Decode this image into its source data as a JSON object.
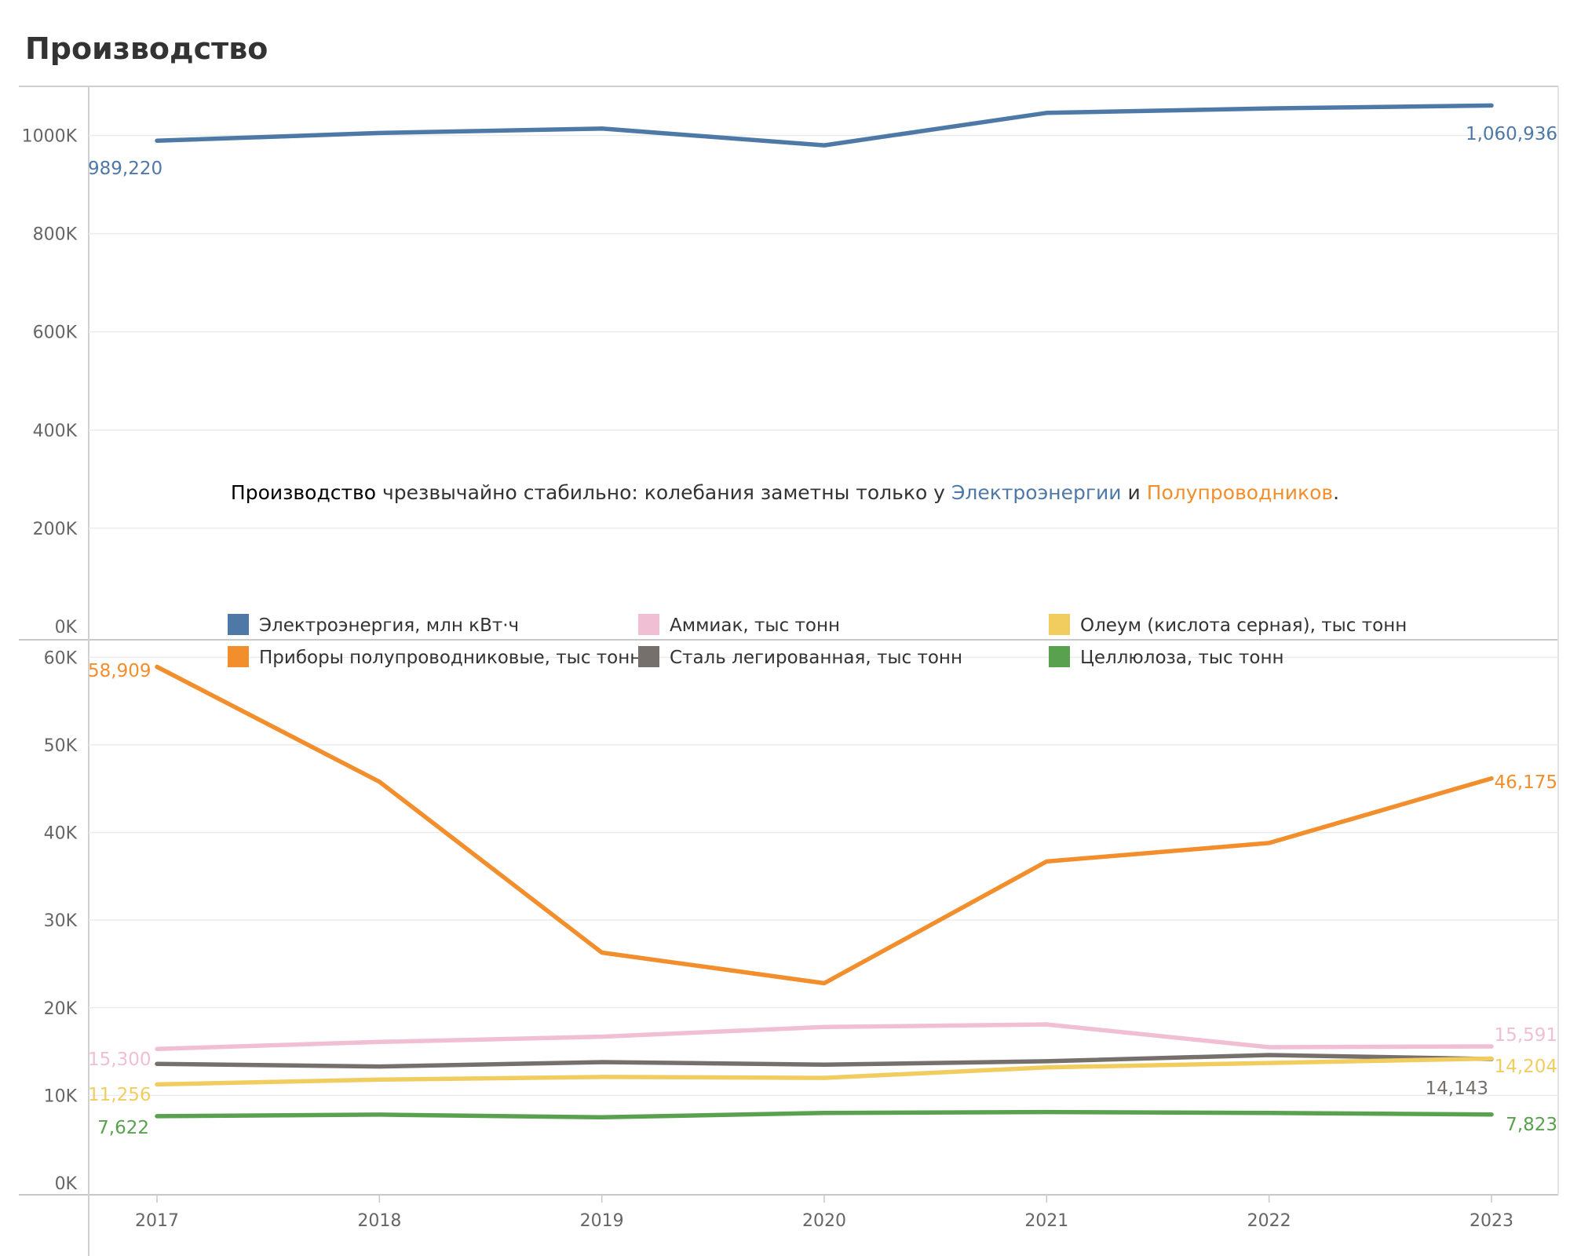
{
  "title": "Производство",
  "annotation": {
    "lead": "Производство",
    "middle": " чрезвычайно стабильно: колебания заметны только у ",
    "hl1": "Электроэнергии",
    "conj": " и ",
    "hl2": "Полупроводников",
    "end": "."
  },
  "chart_data": [
    {
      "type": "line",
      "x": [
        "2017",
        "2018",
        "2019",
        "2020",
        "2021",
        "2022",
        "2023"
      ],
      "ylim": [
        0,
        1100000
      ],
      "yticks": [
        0,
        200000,
        400000,
        600000,
        800000,
        1000000
      ],
      "ytick_labels": [
        "0K",
        "200K",
        "400K",
        "600K",
        "800K",
        "1000K"
      ],
      "series": [
        {
          "name": "Электроэнергия, млн кВт·ч",
          "color": "#4e79a7",
          "values": [
            989220,
            1005000,
            1014000,
            980000,
            1046000,
            1055000,
            1060936
          ],
          "start_label": "989,220",
          "end_label": "1,060,936"
        }
      ]
    },
    {
      "type": "line",
      "x": [
        "2017",
        "2018",
        "2019",
        "2020",
        "2021",
        "2022",
        "2023"
      ],
      "ylim": [
        0,
        62000
      ],
      "yticks": [
        0,
        10000,
        20000,
        30000,
        40000,
        50000,
        60000
      ],
      "ytick_labels": [
        "0K",
        "10K",
        "20K",
        "30K",
        "40K",
        "50K",
        "60K"
      ],
      "series": [
        {
          "name": "Приборы полупроводниковые, тыс тонн",
          "color": "#f28e2b",
          "values": [
            58909,
            45800,
            26300,
            22800,
            36700,
            38800,
            46175
          ],
          "start_label": "58,909",
          "end_label": "46,175"
        },
        {
          "name": "Аммиак, тыс тонн",
          "color": "#f1bfd3",
          "values": [
            15300,
            16100,
            16700,
            17800,
            18100,
            15500,
            15591
          ],
          "start_label": "15,300",
          "end_label": "15,591"
        },
        {
          "name": "Сталь легированная, тыс тонн",
          "color": "#76706d",
          "values": [
            13600,
            13300,
            13800,
            13500,
            13900,
            14600,
            14143
          ],
          "start_label": "",
          "end_label": "14,143"
        },
        {
          "name": "Олеум (кислота серная), тыс тонн",
          "color": "#f1cd60",
          "values": [
            11256,
            11800,
            12100,
            12000,
            13200,
            13700,
            14204
          ],
          "start_label": "11,256",
          "end_label": "14,204"
        },
        {
          "name": "Целлюлоза, тыс тонн",
          "color": "#59a14f",
          "values": [
            7622,
            7800,
            7500,
            8000,
            8100,
            8000,
            7823
          ],
          "start_label": "7,622",
          "end_label": "7,823"
        }
      ]
    }
  ],
  "legend": [
    {
      "label": "Электроэнергия, млн кВт·ч",
      "color": "#4e79a7"
    },
    {
      "label": "Аммиак, тыс тонн",
      "color": "#f1bfd3"
    },
    {
      "label": "Олеум (кислота серная), тыс тонн",
      "color": "#f1cd60"
    },
    {
      "label": "Приборы полупроводниковые, тыс тонн",
      "color": "#f28e2b"
    },
    {
      "label": "Сталь легированная, тыс тонн",
      "color": "#76706d"
    },
    {
      "label": "Целлюлоза, тыс тонн",
      "color": "#59a14f"
    }
  ]
}
